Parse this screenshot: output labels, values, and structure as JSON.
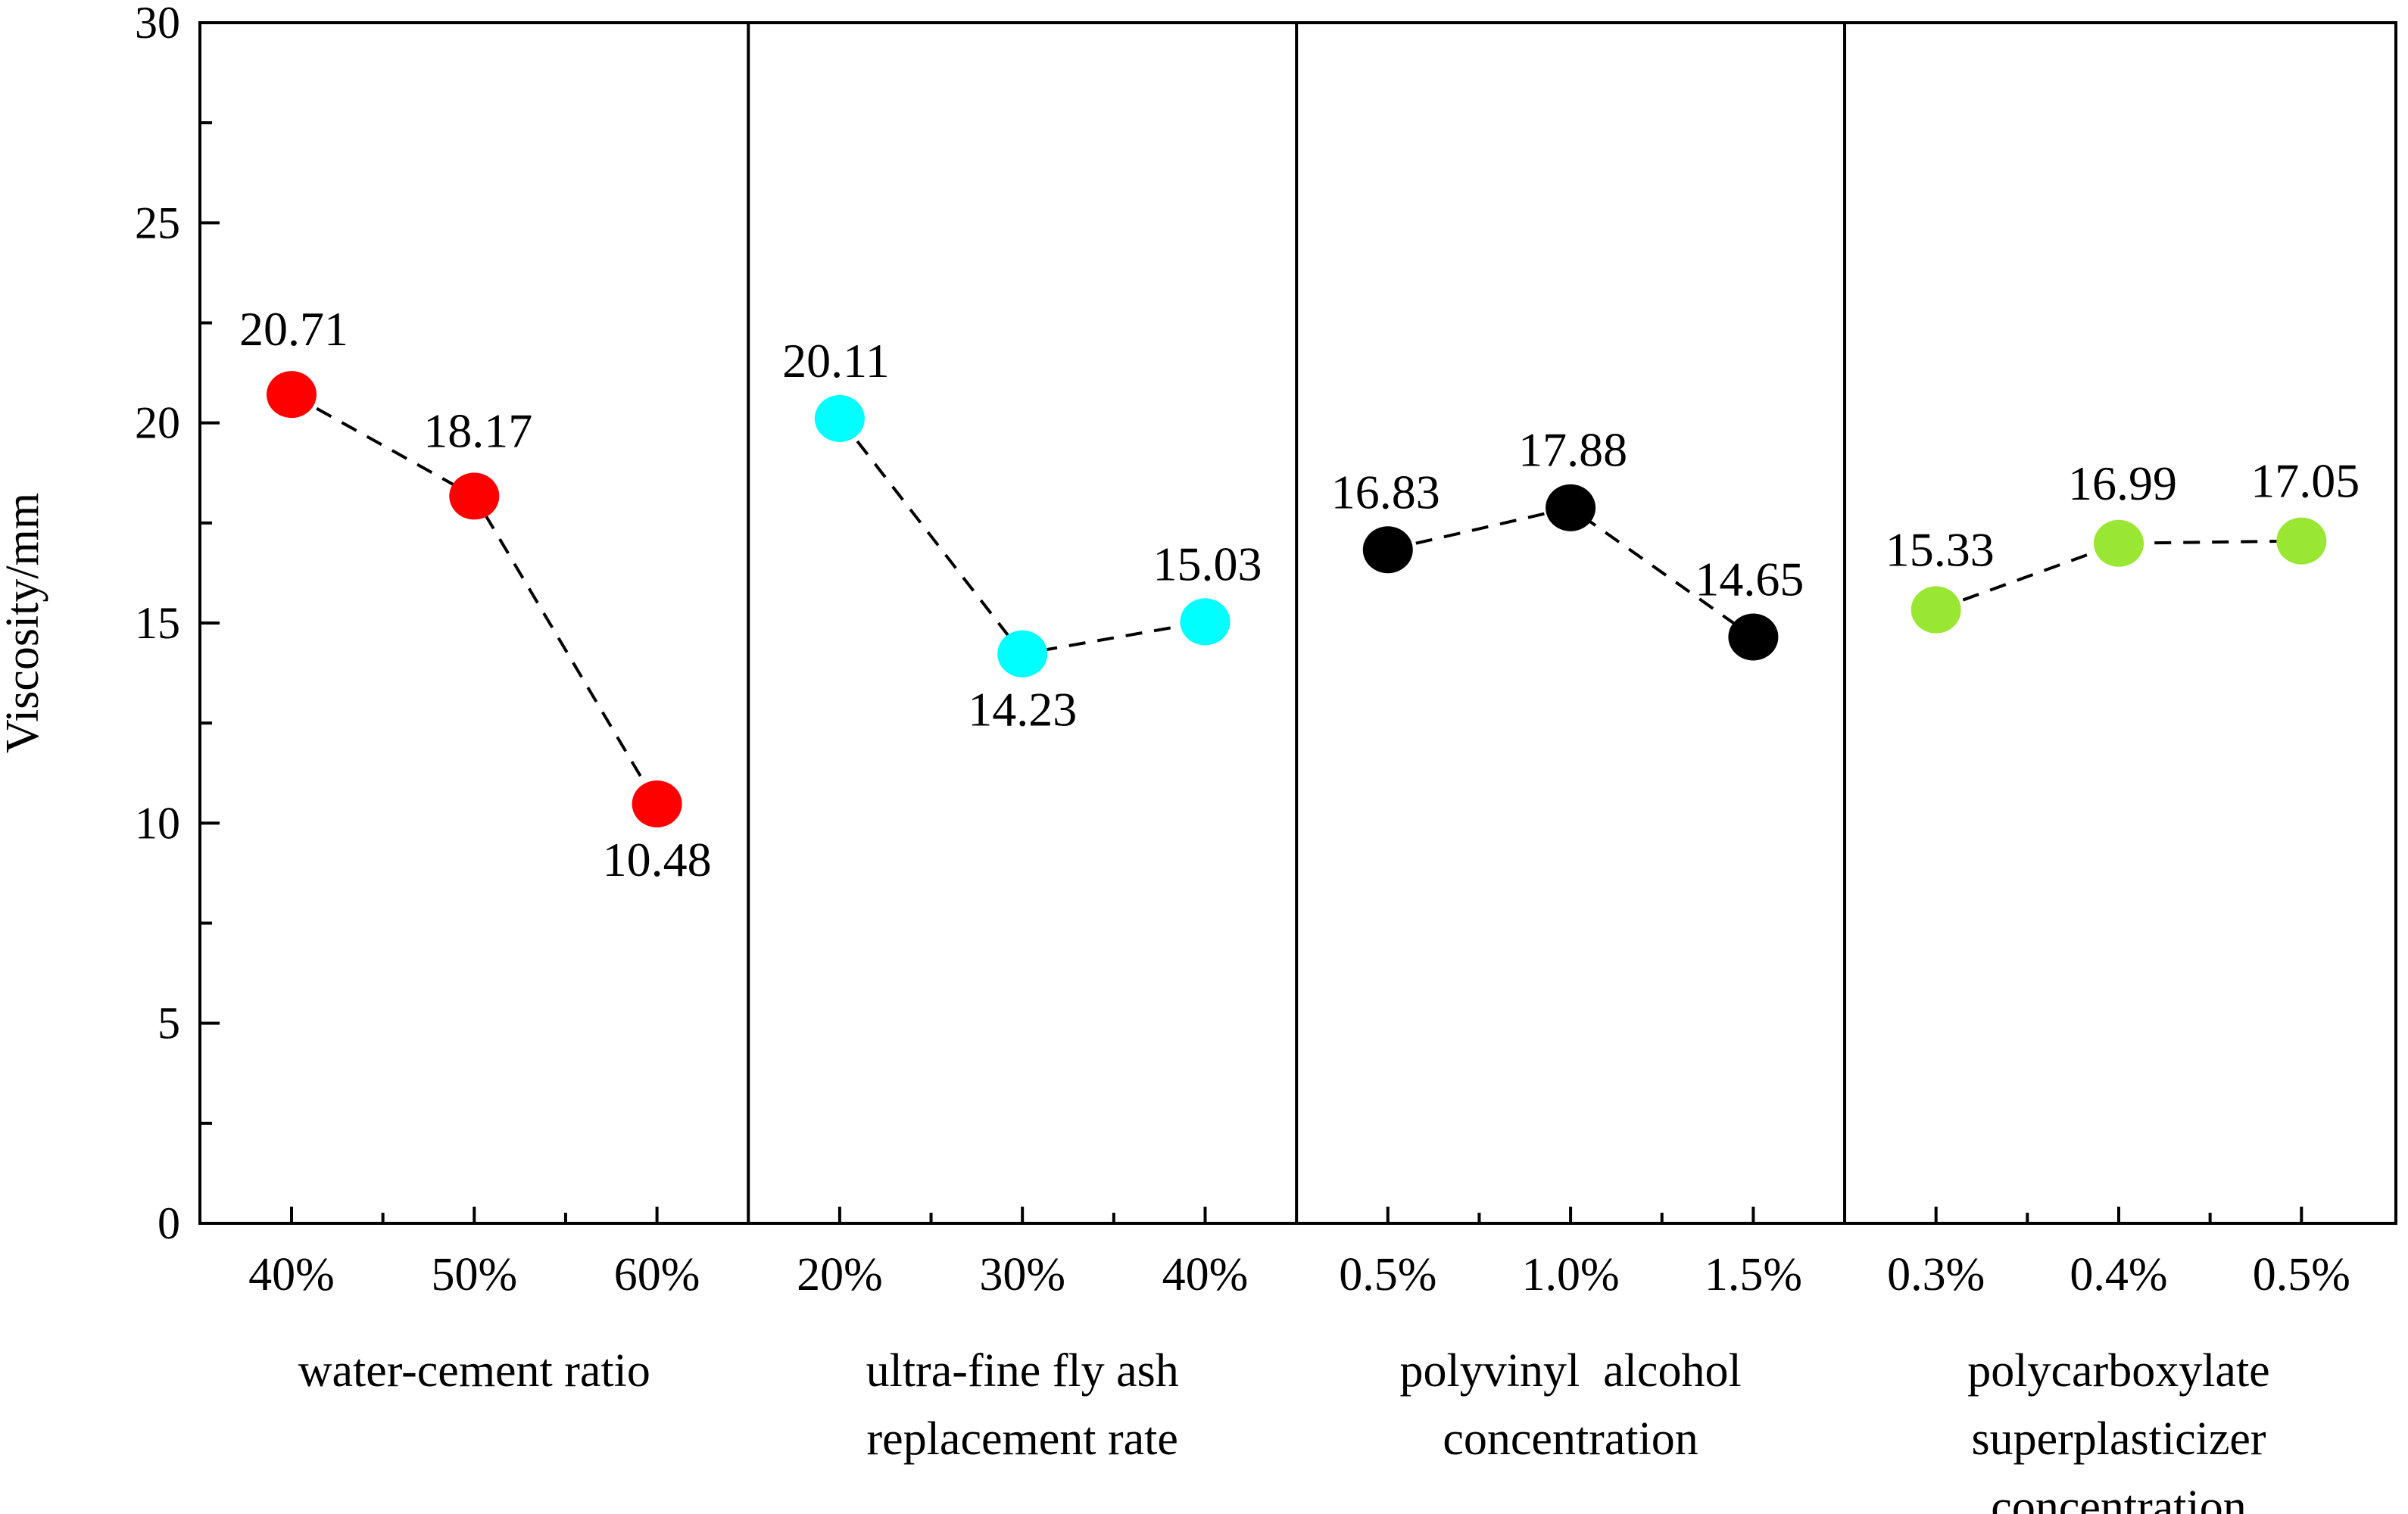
{
  "chart_data": {
    "type": "scatter",
    "title": "",
    "ylabel": "Viscosity/mm",
    "ylim": [
      0,
      30
    ],
    "yticks": [
      0,
      5,
      10,
      15,
      20,
      25,
      30
    ],
    "grid": false,
    "groups": [
      {
        "name": "water-cement ratio",
        "name_lines": [
          "water-cement ratio"
        ],
        "color": "#ff0000",
        "categories": [
          "40%",
          "50%",
          "60%"
        ],
        "values": [
          20.71,
          18.17,
          10.48
        ],
        "labels": [
          "20.71",
          "18.17",
          "10.48"
        ]
      },
      {
        "name": "ultra-fine fly ash replacement rate",
        "name_lines": [
          "ultra-fine fly ash",
          "replacement rate"
        ],
        "color": "#00ffff",
        "categories": [
          "20%",
          "30%",
          "40%"
        ],
        "values": [
          20.11,
          14.23,
          15.03
        ],
        "labels": [
          "20.11",
          "14.23",
          "15.03"
        ]
      },
      {
        "name": "polyvinyl alcohol concentration",
        "name_lines": [
          "polyvinyl  alcohol",
          "concentration"
        ],
        "color": "#000000",
        "categories": [
          "0.5%",
          "1.0%",
          "1.5%"
        ],
        "values": [
          16.83,
          17.88,
          14.65
        ],
        "labels": [
          "16.83",
          "17.88",
          "14.65"
        ]
      },
      {
        "name": "polycarboxylate superplasticizer concentration",
        "name_lines": [
          "polycarboxylate",
          "superplasticizer",
          "concentration"
        ],
        "color": "#99e633",
        "categories": [
          "0.3%",
          "0.4%",
          "0.5%"
        ],
        "values": [
          15.33,
          16.99,
          17.05
        ],
        "labels": [
          "15.33",
          "16.99",
          "17.05"
        ]
      }
    ]
  }
}
